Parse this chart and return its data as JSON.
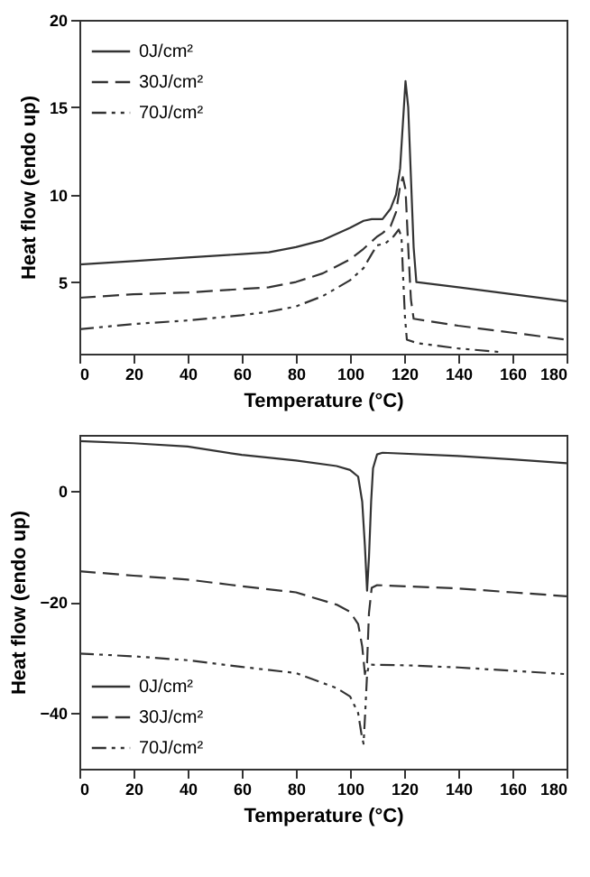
{
  "chart_data": [
    {
      "type": "line",
      "xlabel": "Temperature (°C)",
      "ylabel": "Heat flow (endo up)",
      "xlim": [
        0,
        180
      ],
      "xticks": [
        0,
        20,
        40,
        60,
        80,
        100,
        120,
        140,
        160,
        180
      ],
      "ylim": [
        0.9,
        20
      ],
      "yticks": [
        5,
        10,
        15,
        20
      ],
      "legend": "top left",
      "grid": false,
      "series": [
        {
          "name": "0J/cm²",
          "color": "#333333",
          "line_style": "solid",
          "x": [
            0,
            20,
            40,
            60,
            70,
            80,
            90,
            100,
            105,
            108,
            112,
            115,
            117,
            118.5,
            119.5,
            120.5,
            121.5,
            122.5,
            123.5,
            124.5,
            140,
            160,
            180
          ],
          "values": [
            6.0,
            6.2,
            6.4,
            6.6,
            6.7,
            7.0,
            7.4,
            8.1,
            8.5,
            8.6,
            8.6,
            9.2,
            10,
            11.5,
            14,
            16.5,
            15,
            11,
            7,
            5.0,
            4.7,
            4.3,
            3.9
          ]
        },
        {
          "name": "30J/cm²",
          "color": "#333333",
          "line_style": "dashed",
          "x": [
            0,
            20,
            40,
            60,
            70,
            80,
            90,
            100,
            105,
            110,
            112,
            115,
            117,
            118.5,
            119.5,
            120.5,
            121.5,
            122.5,
            123.5,
            140,
            160,
            180
          ],
          "values": [
            4.1,
            4.3,
            4.4,
            4.6,
            4.7,
            5.0,
            5.5,
            6.3,
            6.9,
            7.6,
            7.8,
            8.2,
            9,
            10.5,
            11,
            10.3,
            7,
            4,
            2.9,
            2.5,
            2.1,
            1.7
          ]
        },
        {
          "name": "70J/cm²",
          "color": "#333333",
          "line_style": "dashdot",
          "x": [
            0,
            20,
            40,
            60,
            70,
            80,
            90,
            100,
            105,
            108,
            110,
            113,
            116,
            118,
            119,
            119.7,
            120.3,
            121,
            125,
            140,
            155
          ],
          "values": [
            2.3,
            2.6,
            2.8,
            3.1,
            3.3,
            3.6,
            4.2,
            5.1,
            5.8,
            6.6,
            7.1,
            7.2,
            7.6,
            8.0,
            7.6,
            5,
            3,
            1.7,
            1.5,
            1.2,
            1.0
          ]
        }
      ]
    },
    {
      "type": "line",
      "xlabel": "Temperature (°C)",
      "ylabel": "Heat flow (endo up)",
      "xlim": [
        0,
        180
      ],
      "xticks": [
        0,
        20,
        40,
        60,
        80,
        100,
        120,
        140,
        160,
        180
      ],
      "ylim": [
        -50,
        10
      ],
      "yticks": [
        -40,
        -20,
        0
      ],
      "legend": "bottom left",
      "grid": false,
      "series": [
        {
          "name": "0J/cm²",
          "color": "#333333",
          "line_style": "solid",
          "x": [
            0,
            20,
            40,
            60,
            80,
            95,
            100,
            103,
            104.5,
            105.5,
            106.3,
            107,
            107.8,
            108.5,
            110,
            112,
            140,
            160,
            180
          ],
          "values": [
            8.9,
            8.5,
            7.9,
            6.4,
            5.4,
            4.4,
            3.7,
            2.5,
            -2,
            -10,
            -18,
            -12,
            -2,
            4,
            6.5,
            6.8,
            6.2,
            5.6,
            4.9
          ]
        },
        {
          "name": "30J/cm²",
          "color": "#333333",
          "line_style": "dashed",
          "x": [
            0,
            20,
            40,
            60,
            80,
            95,
            100,
            103,
            104.5,
            105.5,
            106.3,
            107,
            108,
            110,
            140,
            160,
            180
          ],
          "values": [
            -14.5,
            -15.3,
            -16,
            -17.2,
            -18.3,
            -20.5,
            -21.8,
            -24,
            -28,
            -33,
            -31,
            -22,
            -17.5,
            -17,
            -17.6,
            -18.3,
            -19
          ]
        },
        {
          "name": "70J/cm²",
          "color": "#333333",
          "line_style": "dashdot",
          "x": [
            0,
            20,
            40,
            60,
            80,
            95,
            100,
            103,
            104.3,
            105,
            105.6,
            106.3,
            107,
            120,
            140,
            160,
            180
          ],
          "values": [
            -29.3,
            -29.8,
            -30.5,
            -31.7,
            -32.8,
            -35.5,
            -37,
            -40,
            -44,
            -45.5,
            -40,
            -33,
            -31.3,
            -31.4,
            -31.8,
            -32.4,
            -33
          ]
        }
      ]
    }
  ]
}
